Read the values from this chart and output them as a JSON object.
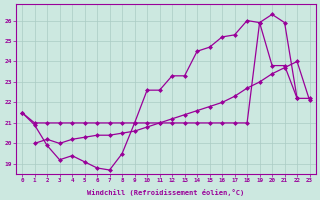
{
  "background_color": "#cce8e0",
  "grid_color": "#aaccc4",
  "line_color": "#990099",
  "xlabel": "Windchill (Refroidissement éolien,°C)",
  "xlim": [
    -0.5,
    23.5
  ],
  "ylim": [
    18.5,
    26.8
  ],
  "yticks": [
    19,
    20,
    21,
    22,
    23,
    24,
    25,
    26
  ],
  "xticks": [
    0,
    1,
    2,
    3,
    4,
    5,
    6,
    7,
    8,
    9,
    10,
    11,
    12,
    13,
    14,
    15,
    16,
    17,
    18,
    19,
    20,
    21,
    22,
    23
  ],
  "series1_x": [
    0,
    1,
    2,
    3,
    4,
    5,
    6,
    7,
    8,
    9,
    10,
    11,
    12,
    13,
    14,
    15,
    16,
    17,
    18,
    19,
    20,
    21,
    22
  ],
  "series1_y": [
    21.5,
    20.9,
    19.9,
    19.2,
    19.4,
    19.1,
    18.8,
    18.7,
    19.5,
    21.0,
    22.6,
    22.6,
    23.3,
    23.3,
    24.5,
    24.7,
    25.2,
    25.3,
    26.0,
    25.9,
    23.8,
    23.8,
    22.2
  ],
  "series2_x": [
    0,
    1,
    2,
    3,
    4,
    5,
    6,
    7,
    8,
    9,
    10,
    11,
    12,
    13,
    14,
    15,
    16,
    17,
    18,
    19,
    20,
    21,
    22,
    23
  ],
  "series2_y": [
    21.5,
    21.0,
    21.0,
    21.0,
    21.0,
    21.0,
    21.0,
    21.0,
    21.0,
    21.0,
    21.0,
    21.0,
    21.0,
    21.0,
    21.0,
    21.0,
    21.0,
    21.0,
    21.0,
    25.9,
    26.3,
    25.9,
    22.2,
    22.2
  ],
  "series3_x": [
    1,
    2,
    3,
    4,
    5,
    6,
    7,
    8,
    9,
    10,
    11,
    12,
    13,
    14,
    15,
    16,
    17,
    18,
    19,
    20,
    21,
    22,
    23
  ],
  "series3_y": [
    20.0,
    20.2,
    20.0,
    20.2,
    20.3,
    20.4,
    20.4,
    20.5,
    20.6,
    20.8,
    21.0,
    21.2,
    21.4,
    21.6,
    21.8,
    22.0,
    22.3,
    22.7,
    23.0,
    23.4,
    23.7,
    24.0,
    22.1
  ]
}
